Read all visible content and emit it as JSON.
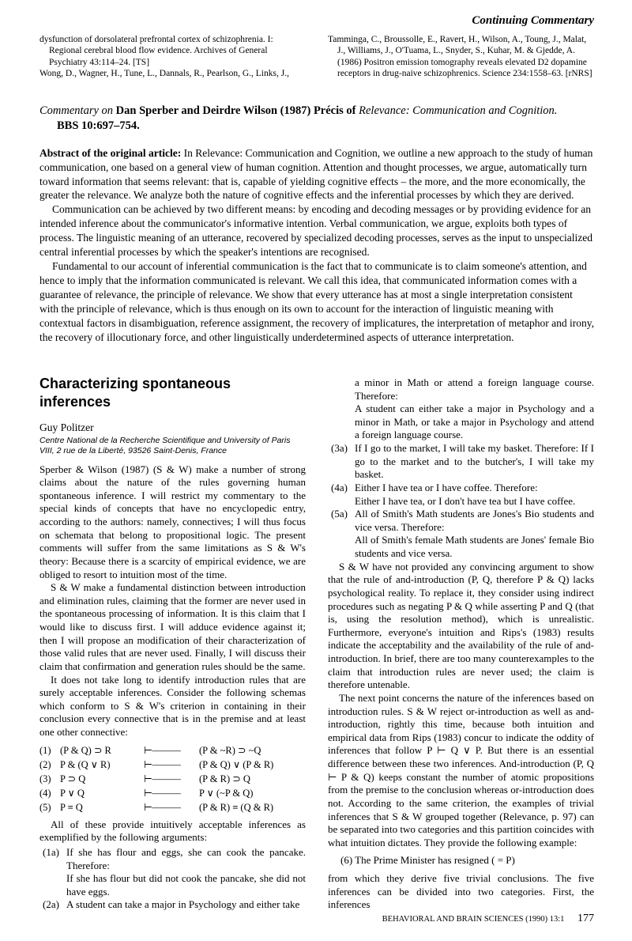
{
  "running_head": "Continuing Commentary",
  "top_refs": {
    "left": [
      "dysfunction of dorsolateral prefrontal cortex of schizophrenia. I: Regional cerebral blood flow evidence. Archives of General Psychiatry 43:114–24.   [TS]",
      "Wong, D., Wagner, H., Tune, L., Dannals, R., Pearlson, G., Links, J.,"
    ],
    "right": [
      "Tamminga, C., Broussolle, E., Ravert, H., Wilson, A., Toung, J., Malat, J., Williams, J., O'Tuama, L., Snyder, S., Kuhar, M. & Gjedde, A. (1986) Positron emission tomography reveals elevated D2 dopamine receptors in drug-naive schizophrenics. Science 234:1558–63.   [rNRS]"
    ]
  },
  "commentary_head": {
    "line1_pre": "Commentary on ",
    "line1_bold": "Dan Sperber and Deirdre Wilson (1987) Précis of ",
    "line1_ital": "Relevance: Communication and Cognition.",
    "bbs": "BBS 10:697–754."
  },
  "abstract": {
    "lead": "Abstract of the original article:",
    "p1_rest": " In Relevance: Communication and Cognition, we outline a new approach to the study of human communication, one based on a general view of human cognition. Attention and thought processes, we argue, automatically turn toward information that seems relevant: that is, capable of yielding cognitive effects – the more, and the more economically, the greater the relevance. We analyze both the nature of cognitive effects and the inferential processes by which they are derived.",
    "p2": "Communication can be achieved by two different means: by encoding and decoding messages or by providing evidence for an intended inference about the communicator's informative intention. Verbal communication, we argue, exploits both types of process. The linguistic meaning of an utterance, recovered by specialized decoding processes, serves as the input to unspecialized central inferential processes by which the speaker's intentions are recognised.",
    "p3": "Fundamental to our account of inferential communication is the fact that to communicate is to claim someone's attention, and hence to imply that the information communicated is relevant. We call this idea, that communicated information comes with a guarantee of relevance, the principle of relevance. We show that every utterance has at most a single interpretation consistent with the principle of relevance, which is thus enough on its own to account for the interaction of linguistic meaning with contextual factors in disambiguation, reference assignment, the recovery of implicatures, the interpretation of metaphor and irony, the recovery of illocutionary force, and other linguistically underdetermined aspects of utterance interpretation."
  },
  "article": {
    "title": "Characterizing spontaneous inferences",
    "author": "Guy Politzer",
    "affil": "Centre National de la Recherche Scientifique and University of Paris VIII, 2 rue de la Liberté, 93526 Saint-Denis, France"
  },
  "left_paras": {
    "p1": "Sperber & Wilson (1987) (S & W) make a number of strong claims about the nature of the rules governing human spontaneous inference. I will restrict my commentary to the special kinds of concepts that have no encyclopedic entry, according to the authors: namely, connectives; I will thus focus on schemata that belong to propositional logic. The present comments will suffer from the same limitations as S & W's theory: Because there is a scarcity of empirical evidence, we are obliged to resort to intuition most of the time.",
    "p2": "S & W make a fundamental distinction between introduction and elimination rules, claiming that the former are never used in the spontaneous processing of information. It is this claim that I would like to discuss first. I will adduce evidence against it; then I will propose an modification of their characterization of those valid rules that are never used. Finally, I will discuss their claim that confirmation and generation rules should be the same.",
    "p3": "It does not take long to identify introduction rules that are surely acceptable inferences. Consider the following schemas which conform to S & W's criterion in containing in their conclusion every connective that is in the premise and at least one other connective:"
  },
  "schemas": [
    {
      "n": "(1)",
      "lhs": "(P & Q) ⊃ R",
      "rhs": "(P & ~R) ⊃ ~Q"
    },
    {
      "n": "(2)",
      "lhs": "P & (Q ∨ R)",
      "rhs": "(P & Q) ∨ (P & R)"
    },
    {
      "n": "(3)",
      "lhs": "P ⊃ Q",
      "rhs": "(P & R) ⊃ Q"
    },
    {
      "n": "(4)",
      "lhs": "P ∨ Q",
      "rhs": "P ∨ (~P & Q)"
    },
    {
      "n": "(5)",
      "lhs": "P ≡ Q",
      "rhs": "(P & R) ≡ (Q & R)"
    }
  ],
  "tee_symbol": "⊢———",
  "left_after_schemas": "All of these provide intuitively acceptable inferences as exemplified by the following arguments:",
  "ex_left": [
    {
      "tag": "(1a)",
      "body": "If she has flour and eggs, she can cook the pancake. Therefore:"
    },
    {
      "tag": "",
      "body": "If she has flour but did not cook the pancake, she did not have eggs."
    },
    {
      "tag": "(2a)",
      "body": "A student can take a major in Psychology and either take"
    }
  ],
  "right_pre": "a minor in Math or attend a foreign language course. Therefore:",
  "right_pre2": "A student can either take a major in Psychology and a minor in Math, or take a major in Psychology and attend a foreign language course.",
  "ex_right": [
    {
      "tag": "(3a)",
      "body": "If I go to the market, I will take my basket. Therefore: If I go to the market and to the butcher's, I will take my basket."
    },
    {
      "tag": "(4a)",
      "body": "Either I have tea or I have coffee. Therefore:"
    },
    {
      "tag": "",
      "body": "Either I have tea, or I don't have tea but I have coffee."
    },
    {
      "tag": "(5a)",
      "body": "All of Smith's Math students are Jones's Bio students and vice versa. Therefore:"
    },
    {
      "tag": "",
      "body": "All of Smith's female Math students are Jones' female Bio students and vice versa."
    }
  ],
  "right_paras": {
    "p1": "S & W have not provided any convincing argument to show that the rule of and-introduction (P, Q, therefore P & Q) lacks psychological reality. To replace it, they consider using indirect procedures such as negating P & Q while asserting P and Q (that is, using the resolution method), which is unrealistic. Furthermore, everyone's intuition and Rips's (1983) results indicate the acceptability and the availability of the rule of and-introduction. In brief, there are too many counterexamples to the claim that introduction rules are never used; the claim is therefore untenable.",
    "p2": "The next point concerns the nature of the inferences based on introduction rules. S & W reject or-introduction as well as and-introduction, rightly this time, because both intuition and empirical data from Rips (1983) concur to indicate the oddity of inferences that follow P ⊢ Q ∨ P. But there is an essential difference between these two inferences. And-introduction (P, Q ⊢ P & Q) keeps constant the number of atomic propositions from the premise to the conclusion whereas or-introduction does not. According to the same criterion, the examples of trivial inferences that S & W grouped together (Relevance, p. 97) can be separated into two categories and this partition coincides with what intuition dictates. They provide the following example:"
  },
  "eq6": "(6) The Prime Minister has resigned ( = P)",
  "right_tail": "from which they derive five trivial conclusions. The five inferences can be divided into two categories. First, the inferences",
  "footer": {
    "journal": "BEHAVIORAL AND BRAIN SCIENCES (1990) 13:1",
    "page": "177"
  }
}
